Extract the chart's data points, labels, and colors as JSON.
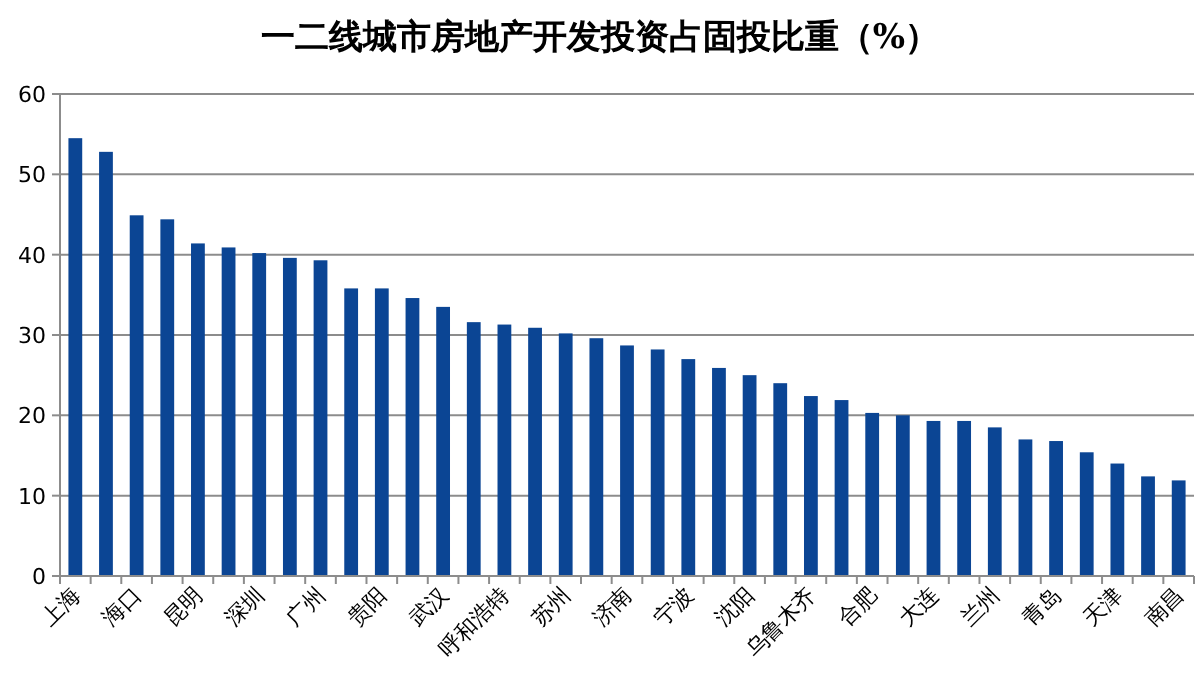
{
  "chart_data": {
    "type": "bar",
    "title": "一二线城市房地产开发投资占固投比重（%）",
    "categories": [
      "上海",
      null,
      "海口",
      null,
      "昆明",
      null,
      "深圳",
      null,
      "广州",
      null,
      "贵阳",
      null,
      "武汉",
      null,
      "呼和浩特",
      null,
      "苏州",
      null,
      "济南",
      null,
      "宁波",
      null,
      "沈阳",
      null,
      "乌鲁木齐",
      null,
      "合肥",
      null,
      "大连",
      null,
      "兰州",
      null,
      "青岛",
      null,
      "天津",
      null,
      "南昌"
    ],
    "values": [
      54.5,
      52.8,
      44.9,
      44.4,
      41.4,
      40.9,
      40.2,
      39.6,
      39.3,
      35.8,
      35.8,
      34.6,
      33.5,
      31.6,
      31.3,
      30.9,
      30.2,
      29.6,
      28.7,
      28.2,
      27.0,
      25.9,
      25.0,
      24.0,
      22.4,
      21.9,
      20.3,
      20.0,
      19.3,
      19.3,
      18.5,
      17.0,
      16.8,
      15.4,
      14.0,
      12.4,
      11.9
    ],
    "color": "#0b4594",
    "ylim": [
      0,
      60
    ],
    "yticks": [
      0,
      10,
      20,
      30,
      40,
      50,
      60
    ],
    "grid": "y"
  }
}
